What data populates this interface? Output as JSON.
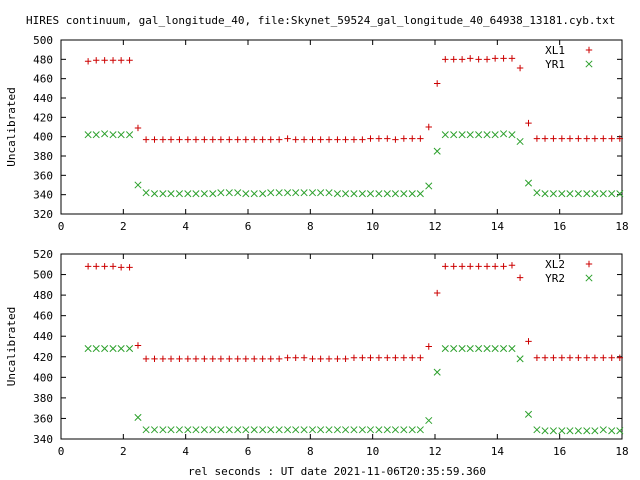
{
  "figure": {
    "title": "HIRES continuum, gal_longitude_40, file:Skynet_59524_gal_longitude_40_64938_13181.cyb.txt",
    "xlabel": "rel seconds : UT date 2021-11-06T20:35:59.360"
  },
  "colors": {
    "series1": "#cc0000",
    "series2": "#2ca02c",
    "axis": "#000000"
  },
  "chart_data": [
    {
      "type": "scatter",
      "ylabel": "Uncalibrated",
      "xlim": [
        0,
        18
      ],
      "ylim": [
        320,
        500
      ],
      "xticks": [
        0,
        2,
        4,
        6,
        8,
        10,
        12,
        14,
        16,
        18
      ],
      "yticks": [
        320,
        340,
        360,
        380,
        400,
        420,
        440,
        460,
        480,
        500
      ],
      "legend_position": "top-right",
      "x": [
        0.87,
        1.13,
        1.4,
        1.67,
        1.93,
        2.2,
        2.47,
        2.73,
        3.0,
        3.27,
        3.53,
        3.8,
        4.07,
        4.33,
        4.6,
        4.87,
        5.13,
        5.4,
        5.67,
        5.93,
        6.2,
        6.47,
        6.73,
        7.0,
        7.27,
        7.53,
        7.8,
        8.07,
        8.33,
        8.6,
        8.87,
        9.13,
        9.4,
        9.67,
        9.93,
        10.2,
        10.47,
        10.73,
        11.0,
        11.27,
        11.53,
        11.8,
        12.07,
        12.33,
        12.6,
        12.87,
        13.13,
        13.4,
        13.67,
        13.93,
        14.2,
        14.47,
        14.73,
        15.0,
        15.27,
        15.53,
        15.8,
        16.07,
        16.33,
        16.6,
        16.87,
        17.13,
        17.4,
        17.67,
        17.93
      ],
      "series": [
        {
          "name": "XL1",
          "marker": "plus",
          "values": [
            478,
            479,
            479,
            479,
            479,
            479,
            409,
            397,
            397,
            397,
            397,
            397,
            397,
            397,
            397,
            397,
            397,
            397,
            397,
            397,
            397,
            397,
            397,
            397,
            398,
            397,
            397,
            397,
            397,
            397,
            397,
            397,
            397,
            397,
            398,
            398,
            398,
            397,
            398,
            398,
            398,
            410,
            455,
            480,
            480,
            480,
            481,
            480,
            480,
            481,
            481,
            481,
            471,
            414,
            398,
            398,
            398,
            398,
            398,
            398,
            398,
            398,
            398,
            398,
            398
          ]
        },
        {
          "name": "YR1",
          "marker": "cross",
          "values": [
            402,
            402,
            403,
            402,
            402,
            402,
            350,
            342,
            341,
            341,
            341,
            341,
            341,
            341,
            341,
            341,
            342,
            342,
            342,
            341,
            341,
            341,
            342,
            342,
            342,
            342,
            342,
            342,
            342,
            342,
            341,
            341,
            341,
            341,
            341,
            341,
            341,
            341,
            341,
            341,
            341,
            349,
            385,
            402,
            402,
            402,
            402,
            402,
            402,
            402,
            403,
            402,
            395,
            352,
            342,
            341,
            341,
            341,
            341,
            341,
            341,
            341,
            341,
            341,
            341
          ]
        }
      ]
    },
    {
      "type": "scatter",
      "ylabel": "Uncalibrated",
      "xlim": [
        0,
        18
      ],
      "ylim": [
        340,
        520
      ],
      "xticks": [
        0,
        2,
        4,
        6,
        8,
        10,
        12,
        14,
        16,
        18
      ],
      "yticks": [
        340,
        360,
        380,
        400,
        420,
        440,
        460,
        480,
        500,
        520
      ],
      "legend_position": "top-right",
      "x": [
        0.87,
        1.13,
        1.4,
        1.67,
        1.93,
        2.2,
        2.47,
        2.73,
        3.0,
        3.27,
        3.53,
        3.8,
        4.07,
        4.33,
        4.6,
        4.87,
        5.13,
        5.4,
        5.67,
        5.93,
        6.2,
        6.47,
        6.73,
        7.0,
        7.27,
        7.53,
        7.8,
        8.07,
        8.33,
        8.6,
        8.87,
        9.13,
        9.4,
        9.67,
        9.93,
        10.2,
        10.47,
        10.73,
        11.0,
        11.27,
        11.53,
        11.8,
        12.07,
        12.33,
        12.6,
        12.87,
        13.13,
        13.4,
        13.67,
        13.93,
        14.2,
        14.47,
        14.73,
        15.0,
        15.27,
        15.53,
        15.8,
        16.07,
        16.33,
        16.6,
        16.87,
        17.13,
        17.4,
        17.67,
        17.93
      ],
      "series": [
        {
          "name": "XL2",
          "marker": "plus",
          "values": [
            508,
            508,
            508,
            508,
            507,
            507,
            431,
            418,
            418,
            418,
            418,
            418,
            418,
            418,
            418,
            418,
            418,
            418,
            418,
            418,
            418,
            418,
            418,
            418,
            419,
            419,
            419,
            418,
            418,
            418,
            418,
            418,
            419,
            419,
            419,
            419,
            419,
            419,
            419,
            419,
            419,
            430,
            482,
            508,
            508,
            508,
            508,
            508,
            508,
            508,
            508,
            509,
            497,
            435,
            419,
            419,
            419,
            419,
            419,
            419,
            419,
            419,
            419,
            419,
            419
          ]
        },
        {
          "name": "YR2",
          "marker": "cross",
          "values": [
            428,
            428,
            428,
            428,
            428,
            428,
            361,
            349,
            349,
            349,
            349,
            349,
            349,
            349,
            349,
            349,
            349,
            349,
            349,
            349,
            349,
            349,
            349,
            349,
            349,
            349,
            349,
            349,
            349,
            349,
            349,
            349,
            349,
            349,
            349,
            349,
            349,
            349,
            349,
            349,
            349,
            358,
            405,
            428,
            428,
            428,
            428,
            428,
            428,
            428,
            428,
            428,
            418,
            364,
            349,
            348,
            348,
            348,
            348,
            348,
            348,
            348,
            349,
            348,
            348
          ]
        }
      ]
    }
  ]
}
